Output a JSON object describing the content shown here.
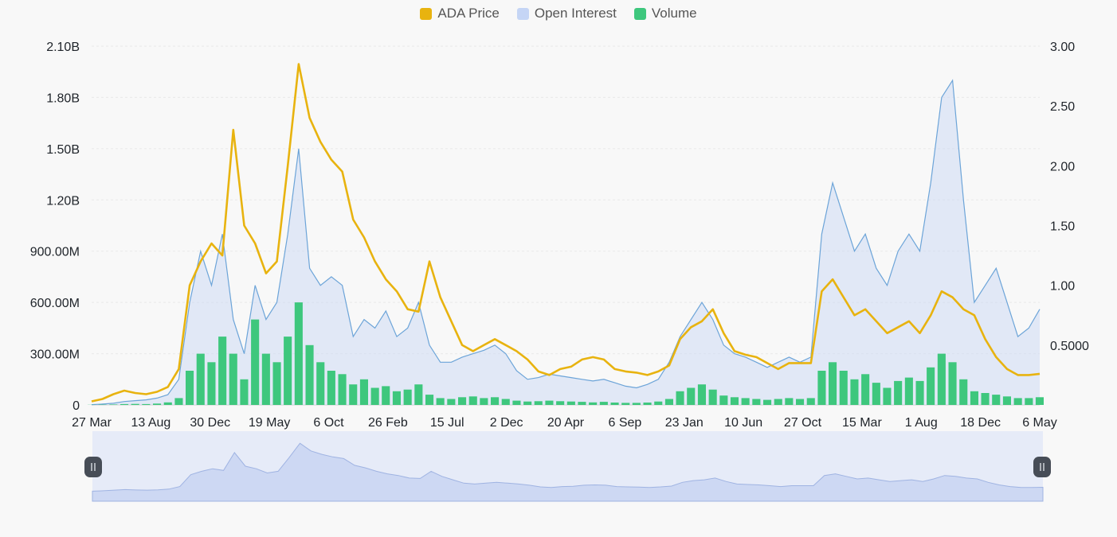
{
  "legend": [
    {
      "label": "ADA Price",
      "color": "#e8b30f"
    },
    {
      "label": "Open Interest",
      "color": "#c5d5f5"
    },
    {
      "label": "Volume",
      "color": "#3ec77d"
    }
  ],
  "chart_data": {
    "type": "line",
    "title": "",
    "legend_placement": "top",
    "grid": true,
    "x_tick_labels": [
      "27 Mar",
      "13 Aug",
      "30 Dec",
      "19 May",
      "6 Oct",
      "26 Feb",
      "15 Jul",
      "2 Dec",
      "20 Apr",
      "6 Sep",
      "23 Jan",
      "10 Jun",
      "27 Oct",
      "15 Mar",
      "1 Aug",
      "18 Dec",
      "6 May"
    ],
    "y_left": {
      "range": [
        0,
        2100000000
      ],
      "ticks": [
        0,
        300000000,
        600000000,
        900000000,
        1200000000,
        1500000000,
        1800000000,
        2100000000
      ],
      "tick_labels": [
        "0",
        "300.00M",
        "600.00M",
        "900.00M",
        "1.20B",
        "1.50B",
        "1.80B",
        "2.10B"
      ]
    },
    "y_right": {
      "range": [
        0,
        3.0
      ],
      "ticks": [
        0.5,
        1.0,
        1.5,
        2.0,
        2.5,
        3.0
      ],
      "tick_labels": [
        "0.5000",
        "1.00",
        "1.50",
        "2.00",
        "2.50",
        "3.00"
      ]
    },
    "series": [
      {
        "name": "ADA Price",
        "axis": "right",
        "color": "#e8b30f",
        "values": [
          0.03,
          0.05,
          0.09,
          0.12,
          0.1,
          0.09,
          0.11,
          0.15,
          0.3,
          1.0,
          1.2,
          1.35,
          1.25,
          2.3,
          1.5,
          1.35,
          1.1,
          1.2,
          2.0,
          2.85,
          2.4,
          2.2,
          2.05,
          1.95,
          1.55,
          1.4,
          1.2,
          1.05,
          0.95,
          0.8,
          0.78,
          1.2,
          0.9,
          0.7,
          0.5,
          0.45,
          0.5,
          0.55,
          0.5,
          0.45,
          0.38,
          0.28,
          0.25,
          0.3,
          0.32,
          0.38,
          0.4,
          0.38,
          0.3,
          0.28,
          0.27,
          0.25,
          0.28,
          0.33,
          0.55,
          0.65,
          0.7,
          0.8,
          0.6,
          0.45,
          0.42,
          0.4,
          0.35,
          0.3,
          0.35,
          0.35,
          0.35,
          0.95,
          1.05,
          0.9,
          0.75,
          0.8,
          0.7,
          0.6,
          0.65,
          0.7,
          0.6,
          0.75,
          0.95,
          0.9,
          0.8,
          0.75,
          0.55,
          0.4,
          0.3,
          0.25,
          0.25,
          0.26
        ]
      },
      {
        "name": "Open Interest",
        "axis": "left",
        "color": "#6ca4d8",
        "values": [
          2000000,
          5000000,
          10000000,
          20000000,
          25000000,
          30000000,
          40000000,
          60000000,
          150000000,
          600000000,
          900000000,
          700000000,
          1000000000,
          500000000,
          300000000,
          700000000,
          500000000,
          600000000,
          1000000000,
          1500000000,
          800000000,
          700000000,
          750000000,
          700000000,
          400000000,
          500000000,
          450000000,
          550000000,
          400000000,
          450000000,
          600000000,
          350000000,
          250000000,
          250000000,
          280000000,
          300000000,
          320000000,
          350000000,
          300000000,
          200000000,
          150000000,
          160000000,
          180000000,
          170000000,
          160000000,
          150000000,
          140000000,
          150000000,
          130000000,
          110000000,
          100000000,
          120000000,
          150000000,
          250000000,
          400000000,
          500000000,
          600000000,
          500000000,
          350000000,
          300000000,
          280000000,
          250000000,
          220000000,
          250000000,
          280000000,
          250000000,
          280000000,
          1000000000,
          1300000000,
          1100000000,
          900000000,
          1000000000,
          800000000,
          700000000,
          900000000,
          1000000000,
          900000000,
          1300000000,
          1800000000,
          1900000000,
          1200000000,
          600000000,
          700000000,
          800000000,
          600000000,
          400000000,
          450000000,
          560000000
        ]
      },
      {
        "name": "Volume",
        "axis": "left",
        "color": "#3ec77d",
        "values": [
          1000000,
          2000000,
          3000000,
          5000000,
          6000000,
          5000000,
          8000000,
          15000000,
          40000000,
          200000000,
          300000000,
          250000000,
          400000000,
          300000000,
          150000000,
          500000000,
          300000000,
          250000000,
          400000000,
          600000000,
          350000000,
          250000000,
          200000000,
          180000000,
          120000000,
          150000000,
          100000000,
          110000000,
          80000000,
          90000000,
          120000000,
          60000000,
          40000000,
          35000000,
          45000000,
          50000000,
          40000000,
          45000000,
          35000000,
          25000000,
          20000000,
          22000000,
          25000000,
          22000000,
          20000000,
          18000000,
          15000000,
          18000000,
          14000000,
          12000000,
          12000000,
          14000000,
          20000000,
          35000000,
          80000000,
          100000000,
          120000000,
          90000000,
          55000000,
          45000000,
          40000000,
          35000000,
          30000000,
          35000000,
          40000000,
          35000000,
          40000000,
          200000000,
          250000000,
          200000000,
          150000000,
          180000000,
          130000000,
          100000000,
          140000000,
          160000000,
          140000000,
          220000000,
          300000000,
          250000000,
          150000000,
          80000000,
          70000000,
          60000000,
          50000000,
          40000000,
          40000000,
          45000000
        ]
      }
    ]
  }
}
